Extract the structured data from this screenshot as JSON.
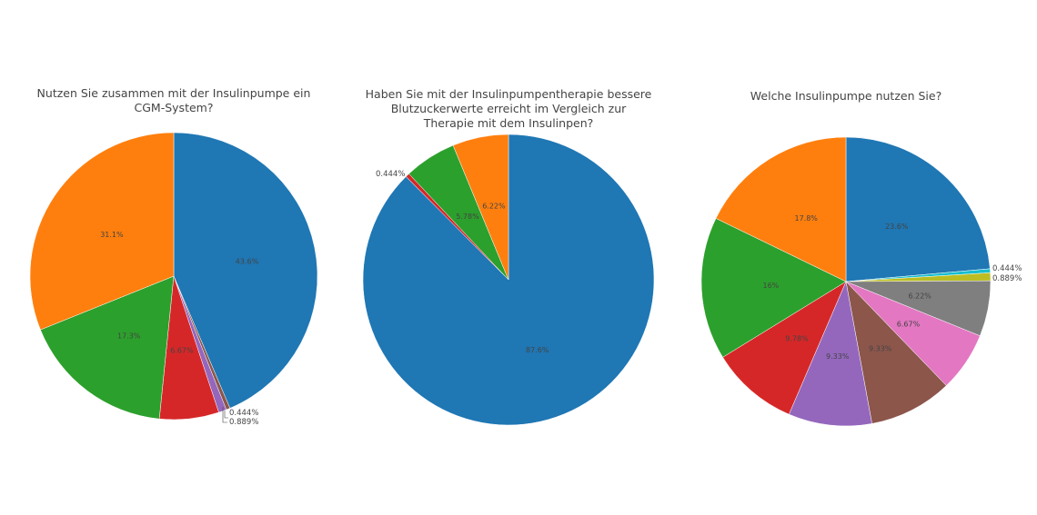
{
  "chart_data": [
    {
      "type": "pie",
      "title_lines": [
        "Nutzen Sie zusammen mit der Insulinpumpe ein",
        "CGM-System?"
      ],
      "slices": [
        {
          "value": 43.6,
          "label": "43.6%",
          "color": "#1f77b4"
        },
        {
          "value": 0.444,
          "label": "0.444%",
          "color": "#8c564b"
        },
        {
          "value": 0.889,
          "label": "0.889%",
          "color": "#9467bd"
        },
        {
          "value": 6.67,
          "label": "6.67%",
          "color": "#d62728"
        },
        {
          "value": 17.3,
          "label": "17.3%",
          "color": "#2ca02c"
        },
        {
          "value": 31.1,
          "label": "31.1%",
          "color": "#ff7f0e"
        }
      ]
    },
    {
      "type": "pie",
      "title_lines": [
        "Haben Sie mit der Insulinpumpentherapie bessere",
        "Blutzuckerwerte erreicht im Vergleich zur",
        "Therapie mit dem Insulinpen?"
      ],
      "slices": [
        {
          "value": 87.6,
          "label": "87.6%",
          "color": "#1f77b4"
        },
        {
          "value": 0.444,
          "label": "0.444%",
          "color": "#d62728"
        },
        {
          "value": 5.78,
          "label": "5.78%",
          "color": "#2ca02c"
        },
        {
          "value": 6.22,
          "label": "6.22%",
          "color": "#ff7f0e"
        }
      ]
    },
    {
      "type": "pie",
      "title_lines": [
        "Welche Insulinpumpe nutzen Sie?"
      ],
      "slices": [
        {
          "value": 23.6,
          "label": "23.6%",
          "color": "#1f77b4"
        },
        {
          "value": 0.444,
          "label": "0.444%",
          "color": "#17becf"
        },
        {
          "value": 0.889,
          "label": "0.889%",
          "color": "#bcbd22"
        },
        {
          "value": 6.22,
          "label": "6.22%",
          "color": "#7f7f7f"
        },
        {
          "value": 6.67,
          "label": "6.67%",
          "color": "#e377c2"
        },
        {
          "value": 9.33,
          "label": "9.33%",
          "color": "#8c564b"
        },
        {
          "value": 9.33,
          "label": "9.33%",
          "color": "#9467bd"
        },
        {
          "value": 9.78,
          "label": "9.78%",
          "color": "#d62728"
        },
        {
          "value": 16,
          "label": "16%",
          "color": "#2ca02c"
        },
        {
          "value": 17.8,
          "label": "17.8%",
          "color": "#ff7f0e"
        }
      ]
    }
  ]
}
